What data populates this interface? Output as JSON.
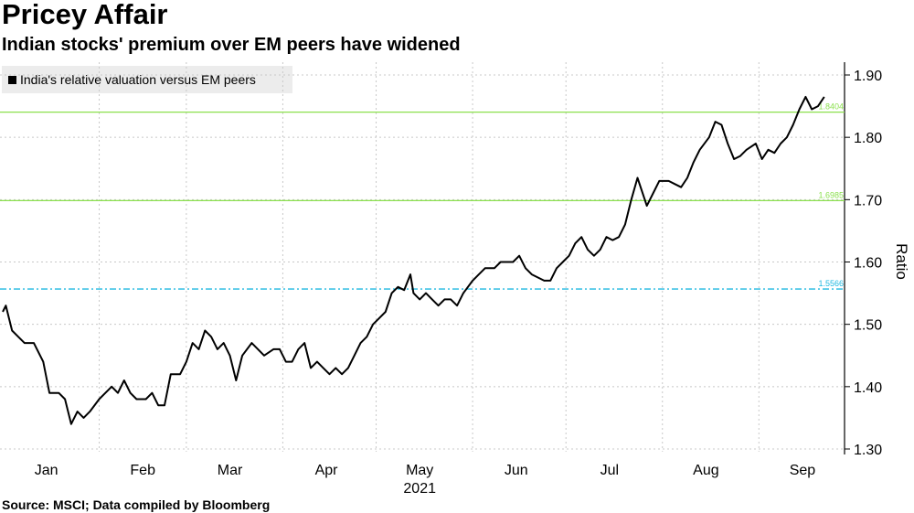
{
  "title": "Pricey Affair",
  "subtitle": "Indian stocks' premium over EM peers have widened",
  "source": "Source: MSCI; Data compiled by Bloomberg",
  "colors": {
    "line": "#000000",
    "ref_green": "#8be04e",
    "ref_blue": "#1fb8e0",
    "grid": "#c8c8c8"
  },
  "chart_data": {
    "type": "line",
    "title": "Pricey Affair",
    "subtitle": "Indian stocks' premium over EM peers have widened",
    "ylabel": "Ratio",
    "xlabel": "",
    "year_label": "2021",
    "ylim": [
      1.3,
      1.9
    ],
    "yticks": [
      "1.30",
      "1.40",
      "1.50",
      "1.60",
      "1.70",
      "1.80",
      "1.90"
    ],
    "xticks": [
      "Jan",
      "Feb",
      "Mar",
      "Apr",
      "May",
      "Jun",
      "Jul",
      "Aug",
      "Sep"
    ],
    "legend": "India's relative valuation versus EM peers",
    "grid": true,
    "reference_lines": [
      {
        "value": 1.8404,
        "label": "1.8404",
        "color": "green",
        "style": "solid"
      },
      {
        "value": 1.6985,
        "label": "1.6985",
        "color": "green",
        "style": "solid"
      },
      {
        "value": 1.5566,
        "label": "1.5566",
        "color": "blue",
        "style": "dashdot"
      }
    ],
    "series": [
      {
        "values": [
          [
            "2021-01-01",
            1.52
          ],
          [
            "2021-01-02",
            1.53
          ],
          [
            "2021-01-04",
            1.49
          ],
          [
            "2021-01-06",
            1.48
          ],
          [
            "2021-01-08",
            1.47
          ],
          [
            "2021-01-11",
            1.47
          ],
          [
            "2021-01-13",
            1.45
          ],
          [
            "2021-01-14",
            1.44
          ],
          [
            "2021-01-16",
            1.39
          ],
          [
            "2021-01-19",
            1.39
          ],
          [
            "2021-01-21",
            1.38
          ],
          [
            "2021-01-23",
            1.34
          ],
          [
            "2021-01-25",
            1.36
          ],
          [
            "2021-01-27",
            1.35
          ],
          [
            "2021-01-29",
            1.36
          ],
          [
            "2021-02-01",
            1.38
          ],
          [
            "2021-02-03",
            1.39
          ],
          [
            "2021-02-05",
            1.4
          ],
          [
            "2021-02-07",
            1.39
          ],
          [
            "2021-02-09",
            1.41
          ],
          [
            "2021-02-11",
            1.39
          ],
          [
            "2021-02-13",
            1.38
          ],
          [
            "2021-02-16",
            1.38
          ],
          [
            "2021-02-18",
            1.39
          ],
          [
            "2021-02-20",
            1.37
          ],
          [
            "2021-02-22",
            1.37
          ],
          [
            "2021-02-24",
            1.42
          ],
          [
            "2021-02-27",
            1.42
          ],
          [
            "2021-03-01",
            1.44
          ],
          [
            "2021-03-03",
            1.47
          ],
          [
            "2021-03-05",
            1.46
          ],
          [
            "2021-03-07",
            1.49
          ],
          [
            "2021-03-09",
            1.48
          ],
          [
            "2021-03-11",
            1.46
          ],
          [
            "2021-03-13",
            1.47
          ],
          [
            "2021-03-15",
            1.45
          ],
          [
            "2021-03-17",
            1.41
          ],
          [
            "2021-03-19",
            1.45
          ],
          [
            "2021-03-22",
            1.47
          ],
          [
            "2021-03-24",
            1.46
          ],
          [
            "2021-03-26",
            1.45
          ],
          [
            "2021-03-29",
            1.46
          ],
          [
            "2021-03-31",
            1.46
          ],
          [
            "2021-04-02",
            1.44
          ],
          [
            "2021-04-04",
            1.44
          ],
          [
            "2021-04-06",
            1.46
          ],
          [
            "2021-04-08",
            1.47
          ],
          [
            "2021-04-10",
            1.43
          ],
          [
            "2021-04-12",
            1.44
          ],
          [
            "2021-04-14",
            1.43
          ],
          [
            "2021-04-16",
            1.42
          ],
          [
            "2021-04-18",
            1.43
          ],
          [
            "2021-04-20",
            1.42
          ],
          [
            "2021-04-22",
            1.43
          ],
          [
            "2021-04-24",
            1.45
          ],
          [
            "2021-04-26",
            1.47
          ],
          [
            "2021-04-28",
            1.48
          ],
          [
            "2021-04-30",
            1.5
          ],
          [
            "2021-05-02",
            1.51
          ],
          [
            "2021-05-04",
            1.52
          ],
          [
            "2021-05-06",
            1.55
          ],
          [
            "2021-05-08",
            1.56
          ],
          [
            "2021-05-10",
            1.555
          ],
          [
            "2021-05-12",
            1.58
          ],
          [
            "2021-05-13",
            1.55
          ],
          [
            "2021-05-15",
            1.54
          ],
          [
            "2021-05-17",
            1.55
          ],
          [
            "2021-05-19",
            1.54
          ],
          [
            "2021-05-21",
            1.53
          ],
          [
            "2021-05-23",
            1.54
          ],
          [
            "2021-05-25",
            1.54
          ],
          [
            "2021-05-27",
            1.53
          ],
          [
            "2021-05-29",
            1.55
          ],
          [
            "2021-06-01",
            1.57
          ],
          [
            "2021-06-03",
            1.58
          ],
          [
            "2021-06-05",
            1.59
          ],
          [
            "2021-06-08",
            1.59
          ],
          [
            "2021-06-10",
            1.6
          ],
          [
            "2021-06-12",
            1.6
          ],
          [
            "2021-06-14",
            1.6
          ],
          [
            "2021-06-16",
            1.61
          ],
          [
            "2021-06-18",
            1.59
          ],
          [
            "2021-06-20",
            1.58
          ],
          [
            "2021-06-22",
            1.575
          ],
          [
            "2021-06-24",
            1.57
          ],
          [
            "2021-06-26",
            1.57
          ],
          [
            "2021-06-28",
            1.59
          ],
          [
            "2021-06-30",
            1.6
          ],
          [
            "2021-07-02",
            1.61
          ],
          [
            "2021-07-04",
            1.63
          ],
          [
            "2021-07-06",
            1.64
          ],
          [
            "2021-07-08",
            1.62
          ],
          [
            "2021-07-10",
            1.61
          ],
          [
            "2021-07-12",
            1.62
          ],
          [
            "2021-07-14",
            1.64
          ],
          [
            "2021-07-16",
            1.635
          ],
          [
            "2021-07-18",
            1.64
          ],
          [
            "2021-07-20",
            1.66
          ],
          [
            "2021-07-22",
            1.7
          ],
          [
            "2021-07-24",
            1.735
          ],
          [
            "2021-07-27",
            1.69
          ],
          [
            "2021-07-29",
            1.71
          ],
          [
            "2021-07-31",
            1.73
          ],
          [
            "2021-08-03",
            1.73
          ],
          [
            "2021-08-05",
            1.725
          ],
          [
            "2021-08-07",
            1.72
          ],
          [
            "2021-08-09",
            1.735
          ],
          [
            "2021-08-11",
            1.76
          ],
          [
            "2021-08-13",
            1.78
          ],
          [
            "2021-08-16",
            1.8
          ],
          [
            "2021-08-18",
            1.825
          ],
          [
            "2021-08-20",
            1.82
          ],
          [
            "2021-08-22",
            1.79
          ],
          [
            "2021-08-24",
            1.765
          ],
          [
            "2021-08-26",
            1.77
          ],
          [
            "2021-08-28",
            1.78
          ],
          [
            "2021-08-31",
            1.79
          ],
          [
            "2021-09-02",
            1.765
          ],
          [
            "2021-09-04",
            1.78
          ],
          [
            "2021-09-06",
            1.775
          ],
          [
            "2021-09-08",
            1.79
          ],
          [
            "2021-09-10",
            1.8
          ],
          [
            "2021-09-12",
            1.82
          ],
          [
            "2021-09-14",
            1.845
          ],
          [
            "2021-09-16",
            1.865
          ],
          [
            "2021-09-18",
            1.845
          ],
          [
            "2021-09-20",
            1.85
          ],
          [
            "2021-09-22",
            1.865
          ]
        ]
      }
    ]
  }
}
